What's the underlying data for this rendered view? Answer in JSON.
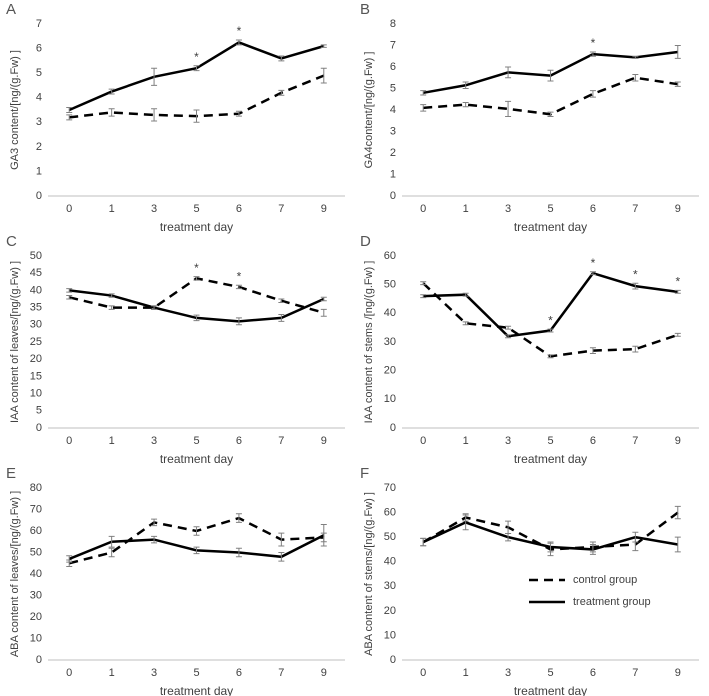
{
  "chart_data": [
    {
      "type": "line",
      "label": "A",
      "ylabel": "GA3 content/[ng/(g.Fw) ]",
      "xlabel": "treatment day",
      "categories": [
        "0",
        "1",
        "3",
        "5",
        "6",
        "7",
        "9"
      ],
      "ylim": [
        0,
        7
      ],
      "yticks": [
        0,
        1,
        2,
        3,
        4,
        5,
        6,
        7
      ],
      "series": [
        {
          "color": "#000000",
          "dashed": true,
          "values": [
            3.2,
            3.4,
            3.3,
            3.25,
            3.35,
            4.2,
            4.9
          ],
          "errors": [
            0.1,
            0.15,
            0.25,
            0.25,
            0.1,
            0.1,
            0.3
          ]
        },
        {
          "color": "#000000",
          "dashed": false,
          "values": [
            3.5,
            4.25,
            4.85,
            5.2,
            6.25,
            5.6,
            6.1
          ],
          "errors": [
            0.1,
            0.1,
            0.35,
            0.1,
            0.1,
            0.1,
            0.05
          ]
        }
      ],
      "annotations": [
        {
          "text": "*",
          "at": "5"
        },
        {
          "text": "*",
          "at": "6"
        }
      ]
    },
    {
      "type": "line",
      "label": "B",
      "ylabel": "GA4content/[ng/(g.Fw) ]",
      "xlabel": "treatment day",
      "categories": [
        "0",
        "1",
        "3",
        "5",
        "6",
        "7",
        "9"
      ],
      "ylim": [
        0,
        8
      ],
      "yticks": [
        0,
        1,
        2,
        3,
        4,
        5,
        6,
        7,
        8
      ],
      "series": [
        {
          "color": "#000000",
          "dashed": true,
          "values": [
            4.1,
            4.25,
            4.05,
            3.8,
            4.75,
            5.5,
            5.2
          ],
          "errors": [
            0.15,
            0.1,
            0.35,
            0.1,
            0.15,
            0.15,
            0.1
          ]
        },
        {
          "color": "#000000",
          "dashed": false,
          "values": [
            4.8,
            5.15,
            5.75,
            5.6,
            6.6,
            6.45,
            6.7
          ],
          "errors": [
            0.1,
            0.15,
            0.25,
            0.25,
            0.1,
            0.05,
            0.3
          ]
        }
      ],
      "annotations": [
        {
          "text": "*",
          "at": "6"
        }
      ]
    },
    {
      "type": "line",
      "label": "C",
      "ylabel": "IAA content of leaves/[ng/(g.Fw) ]",
      "xlabel": "treatment day",
      "categories": [
        "0",
        "1",
        "3",
        "5",
        "6",
        "7",
        "9"
      ],
      "ylim": [
        0,
        50
      ],
      "yticks": [
        0,
        5,
        10,
        15,
        20,
        25,
        30,
        35,
        40,
        45,
        50
      ],
      "series": [
        {
          "color": "#000000",
          "dashed": true,
          "values": [
            38,
            35,
            35,
            43.5,
            41,
            37,
            33.5
          ],
          "errors": [
            0.5,
            0.5,
            0.5,
            0.5,
            0.5,
            0.5,
            1
          ]
        },
        {
          "color": "#000000",
          "dashed": false,
          "values": [
            40,
            38.5,
            35,
            32,
            31,
            32,
            37.5
          ],
          "errors": [
            0.5,
            0.5,
            0.5,
            0.8,
            1,
            1,
            0.5
          ]
        }
      ],
      "annotations": [
        {
          "text": "*",
          "at": "5"
        },
        {
          "text": "*",
          "at": "6"
        }
      ]
    },
    {
      "type": "line",
      "label": "D",
      "ylabel": "IAA content of stems /[ng/(g.Fw) ]",
      "xlabel": "treatment day",
      "categories": [
        "0",
        "1",
        "3",
        "5",
        "6",
        "7",
        "9"
      ],
      "ylim": [
        0,
        60
      ],
      "yticks": [
        0,
        10,
        20,
        30,
        40,
        50,
        60
      ],
      "series": [
        {
          "color": "#000000",
          "dashed": true,
          "values": [
            50.5,
            36.5,
            35,
            25,
            27,
            27.5,
            32.5
          ],
          "errors": [
            0.5,
            0.5,
            0.5,
            0.5,
            1,
            1,
            0.5
          ]
        },
        {
          "color": "#000000",
          "dashed": false,
          "values": [
            46,
            46.5,
            32,
            34,
            54,
            49.5,
            47.5
          ],
          "errors": [
            0.5,
            0.5,
            0.5,
            0.5,
            0.5,
            1,
            0.5
          ]
        }
      ],
      "annotations": [
        {
          "text": "*",
          "at": "5"
        },
        {
          "text": "*",
          "at": "6"
        },
        {
          "text": "*",
          "at": "7"
        },
        {
          "text": "*",
          "at": "9"
        }
      ]
    },
    {
      "type": "line",
      "label": "E",
      "ylabel": "ABA content of leaves/[ng/(g.Fw) ]",
      "xlabel": "treatment day",
      "categories": [
        "0",
        "1",
        "3",
        "5",
        "6",
        "7",
        "9"
      ],
      "ylim": [
        0,
        80
      ],
      "yticks": [
        0,
        10,
        20,
        30,
        40,
        50,
        60,
        70,
        80
      ],
      "series": [
        {
          "color": "#000000",
          "dashed": true,
          "values": [
            45,
            50,
            64,
            60,
            66,
            56,
            57
          ],
          "errors": [
            1.5,
            2,
            1.5,
            2,
            2,
            3,
            2
          ]
        },
        {
          "color": "#000000",
          "dashed": false,
          "values": [
            47,
            55,
            56,
            51,
            50,
            48,
            58
          ],
          "errors": [
            1.5,
            2.5,
            1.5,
            1.5,
            2,
            2,
            5
          ]
        }
      ],
      "annotations": []
    },
    {
      "type": "line",
      "label": "F",
      "ylabel": "ABA content of stems/[ng/(g.Fw) ]",
      "xlabel": "treatment day",
      "categories": [
        "0",
        "1",
        "3",
        "5",
        "6",
        "7",
        "9"
      ],
      "ylim": [
        0,
        70
      ],
      "yticks": [
        0,
        10,
        20,
        30,
        40,
        50,
        60,
        70
      ],
      "legend": "lower right",
      "series": [
        {
          "name": "control group",
          "color": "#000000",
          "dashed": true,
          "values": [
            48,
            58,
            54,
            45,
            46,
            47,
            60
          ],
          "errors": [
            1.5,
            1.5,
            2.5,
            2.5,
            2,
            2.5,
            2.5
          ]
        },
        {
          "name": "treatment group",
          "color": "#000000",
          "dashed": false,
          "values": [
            48,
            56,
            50,
            46,
            45,
            50,
            47
          ],
          "errors": [
            1.5,
            3,
            1.5,
            2,
            2,
            2,
            3
          ]
        }
      ],
      "annotations": []
    }
  ]
}
